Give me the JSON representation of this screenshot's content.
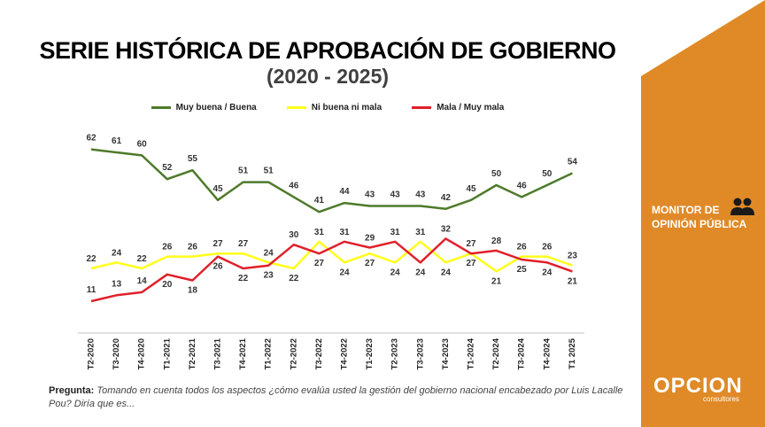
{
  "title": "SERIE HISTÓRICA DE APROBACIÓN DE GOBIERNO",
  "subtitle": "(2020 - 2025)",
  "question_label": "Pregunta:",
  "question_text": "Tomando en cuenta todos los aspectos ¿cómo evalúa usted la gestión del gobierno nacional encabezado por Luis Lacalle Pou? Diría que es...",
  "sidebar": {
    "monitor_line1": "MONITOR DE",
    "monitor_line2": "OPINIÓN PÚBLICA",
    "icon": "people-icon",
    "logo": "OPCION",
    "logo_sub": "consultores",
    "color": "#E08A27"
  },
  "chart_data": {
    "type": "line",
    "categories": [
      "T2-2020",
      "T3-2020",
      "T4-2020",
      "T1-2021",
      "T2-2021",
      "T3-2021",
      "T4-2021",
      "T1-2022",
      "T2-2022",
      "T3-2022",
      "T4-2022",
      "T1-2023",
      "T2-2023",
      "T3-2023",
      "T4-2023",
      "T1-2024",
      "T2-2024",
      "T3-2024",
      "T4-2024",
      "T1 2025"
    ],
    "series": [
      {
        "name": "Muy buena / Buena",
        "color": "#4E7A2A",
        "values": [
          62,
          61,
          60,
          52,
          55,
          45,
          51,
          51,
          46,
          41,
          44,
          43,
          43,
          43,
          42,
          45,
          50,
          46,
          50,
          54
        ]
      },
      {
        "name": "Ni buena ni mala",
        "color": "#FFFF1A",
        "values": [
          22,
          24,
          22,
          26,
          26,
          27,
          27,
          24,
          22,
          31,
          24,
          27,
          24,
          31,
          24,
          27,
          21,
          26,
          26,
          23
        ]
      },
      {
        "name": "Mala / Muy mala",
        "color": "#E0202A",
        "values": [
          11,
          13,
          14,
          20,
          18,
          26,
          22,
          23,
          30,
          27,
          31,
          29,
          31,
          24,
          32,
          27,
          28,
          25,
          24,
          21
        ]
      }
    ],
    "legend_position": "top-center",
    "grid": false
  }
}
